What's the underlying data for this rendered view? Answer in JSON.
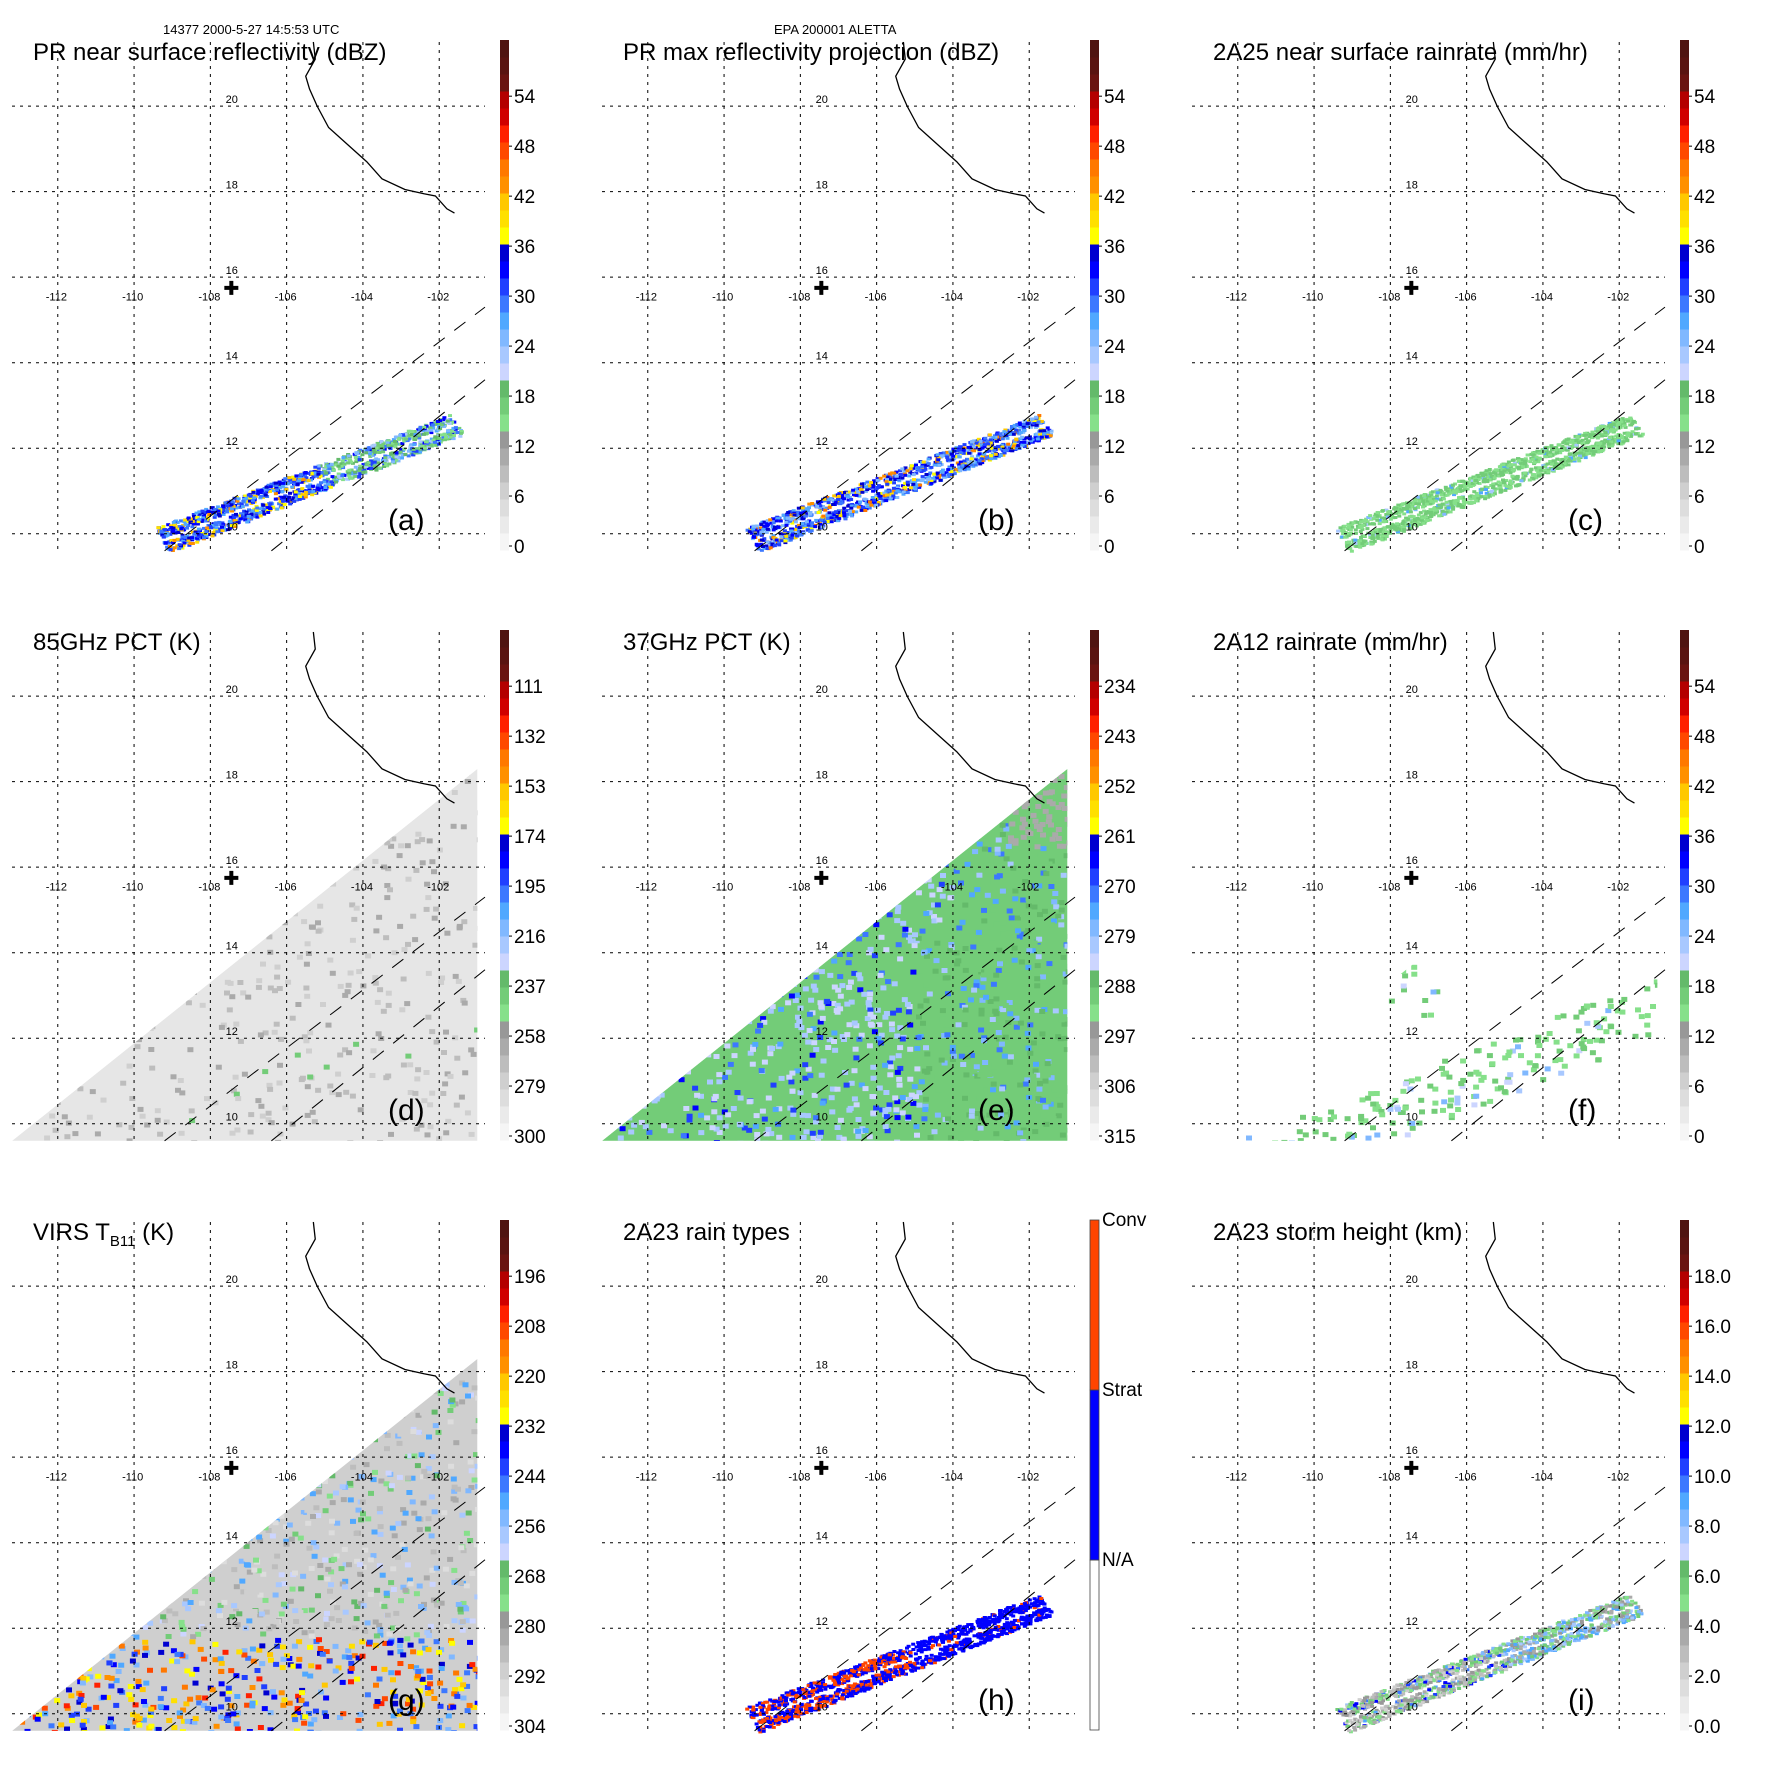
{
  "header": {
    "left": "14377 2000-5-27 14:5:53 UTC",
    "center": "EPA 200001 ALETTA"
  },
  "chart_data": [
    {
      "id": "a",
      "type": "heatmap",
      "title": "PR near surface reflectivity (dBZ)",
      "panel_label": "(a)",
      "colorbar": {
        "type": "continuous",
        "ticks": [
          "0",
          "6",
          "12",
          "18",
          "24",
          "30",
          "36",
          "42",
          "48",
          "54"
        ],
        "range": [
          0,
          60
        ]
      },
      "swath": "pr",
      "field": "pr_refl",
      "contours": false,
      "lon_ticks": [
        "-112",
        "-110",
        "-108",
        "-106",
        "-104",
        "-102"
      ],
      "lat_ticks": [
        "10",
        "12",
        "14",
        "16",
        "18",
        "20"
      ],
      "xlim": [
        -113.2,
        -100.8
      ],
      "ylim": [
        9.9,
        21.5
      ]
    },
    {
      "id": "b",
      "type": "heatmap",
      "title": "PR max reflectivity projection (dBZ)",
      "panel_label": "(b)",
      "colorbar": {
        "type": "continuous",
        "ticks": [
          "0",
          "6",
          "12",
          "18",
          "24",
          "30",
          "36",
          "42",
          "48",
          "54"
        ],
        "range": [
          0,
          60
        ]
      },
      "swath": "pr",
      "field": "pr_max",
      "contours": true,
      "lon_ticks": [
        "-112",
        "-110",
        "-108",
        "-106",
        "-104",
        "-102"
      ],
      "lat_ticks": [
        "10",
        "12",
        "14",
        "16",
        "18",
        "20"
      ],
      "xlim": [
        -113.2,
        -100.8
      ],
      "ylim": [
        9.9,
        21.5
      ]
    },
    {
      "id": "c",
      "type": "heatmap",
      "title": "2A25 near surface rainrate (mm/hr)",
      "panel_label": "(c)",
      "colorbar": {
        "type": "continuous",
        "ticks": [
          "0",
          "6",
          "12",
          "18",
          "24",
          "30",
          "36",
          "42",
          "48",
          "54"
        ],
        "range": [
          0,
          60
        ]
      },
      "swath": "pr",
      "field": "pr_rain",
      "contours": true,
      "lon_ticks": [
        "-112",
        "-110",
        "-108",
        "-106",
        "-104",
        "-102"
      ],
      "lat_ticks": [
        "10",
        "12",
        "14",
        "16",
        "18",
        "20"
      ],
      "xlim": [
        -113.2,
        -100.8
      ],
      "ylim": [
        9.9,
        21.5
      ]
    },
    {
      "id": "d",
      "type": "heatmap",
      "title": "85GHz PCT (K)",
      "panel_label": "(d)",
      "colorbar": {
        "type": "continuous",
        "ticks": [
          "300",
          "279",
          "258",
          "237",
          "216",
          "195",
          "174",
          "153",
          "132",
          "111"
        ],
        "range": [
          300,
          90
        ]
      },
      "swath": "tmi",
      "field": "pct85",
      "contours": true,
      "lon_ticks": [
        "-112",
        "-110",
        "-108",
        "-106",
        "-104",
        "-102"
      ],
      "lat_ticks": [
        "10",
        "12",
        "14",
        "16",
        "18",
        "20"
      ],
      "xlim": [
        -113.2,
        -100.8
      ],
      "ylim": [
        9.9,
        21.5
      ]
    },
    {
      "id": "e",
      "type": "heatmap",
      "title": "37GHz PCT (K)",
      "panel_label": "(e)",
      "colorbar": {
        "type": "continuous",
        "ticks": [
          "315",
          "306",
          "297",
          "288",
          "279",
          "270",
          "261",
          "252",
          "243",
          "234"
        ],
        "range": [
          315,
          225
        ]
      },
      "swath": "tmi",
      "field": "pct37",
      "contours": false,
      "lon_ticks": [
        "-112",
        "-110",
        "-108",
        "-106",
        "-104",
        "-102"
      ],
      "lat_ticks": [
        "10",
        "12",
        "14",
        "16",
        "18",
        "20"
      ],
      "xlim": [
        -113.2,
        -100.8
      ],
      "ylim": [
        9.9,
        21.5
      ]
    },
    {
      "id": "f",
      "type": "heatmap",
      "title": "2A12 rainrate (mm/hr)",
      "panel_label": "(f)",
      "colorbar": {
        "type": "continuous",
        "ticks": [
          "0",
          "6",
          "12",
          "18",
          "24",
          "30",
          "36",
          "42",
          "48",
          "54"
        ],
        "range": [
          0,
          60
        ]
      },
      "swath": "tmi_rain",
      "field": "tmi_rain",
      "contours": true,
      "lon_ticks": [
        "-112",
        "-110",
        "-108",
        "-106",
        "-104",
        "-102"
      ],
      "lat_ticks": [
        "10",
        "12",
        "14",
        "16",
        "18",
        "20"
      ],
      "xlim": [
        -113.2,
        -100.8
      ],
      "ylim": [
        9.9,
        21.5
      ]
    },
    {
      "id": "g",
      "type": "heatmap",
      "title": "VIRS T",
      "title_sub": "B11",
      "title_suffix": " (K)",
      "panel_label": "(g)",
      "colorbar": {
        "type": "continuous",
        "ticks": [
          "304",
          "292",
          "280",
          "268",
          "256",
          "244",
          "232",
          "220",
          "208",
          "196"
        ],
        "range": [
          304,
          184
        ]
      },
      "swath": "virs",
      "field": "virs",
      "contours": true,
      "lon_ticks": [
        "-112",
        "-110",
        "-108",
        "-106",
        "-104",
        "-102"
      ],
      "lat_ticks": [
        "10",
        "12",
        "14",
        "16",
        "18",
        "20"
      ],
      "xlim": [
        -113.2,
        -100.8
      ],
      "ylim": [
        9.9,
        21.5
      ]
    },
    {
      "id": "h",
      "type": "heatmap",
      "title": "2A23 rain types",
      "panel_label": "(h)",
      "colorbar": {
        "type": "categorical",
        "ticks": [
          "N/A",
          "Strat",
          "Conv"
        ],
        "colors": [
          "#ffffff",
          "#0000ff",
          "#ff4500"
        ]
      },
      "swath": "pr",
      "field": "rtype",
      "contours": false,
      "lon_ticks": [
        "-112",
        "-110",
        "-108",
        "-106",
        "-104",
        "-102"
      ],
      "lat_ticks": [
        "10",
        "12",
        "14",
        "16",
        "18",
        "20"
      ],
      "xlim": [
        -113.2,
        -100.8
      ],
      "ylim": [
        9.9,
        21.5
      ]
    },
    {
      "id": "i",
      "type": "heatmap",
      "title": "2A23 storm height (km)",
      "panel_label": "(i)",
      "colorbar": {
        "type": "continuous",
        "ticks": [
          "0.0",
          "2.0",
          "4.0",
          "6.0",
          "8.0",
          "10.0",
          "12.0",
          "14.0",
          "16.0",
          "18.0"
        ],
        "range": [
          0,
          20
        ]
      },
      "swath": "pr",
      "field": "sh",
      "contours": false,
      "lon_ticks": [
        "-112",
        "-110",
        "-108",
        "-106",
        "-104",
        "-102"
      ],
      "lat_ticks": [
        "10",
        "12",
        "14",
        "16",
        "18",
        "20"
      ],
      "xlim": [
        -113.2,
        -100.8
      ],
      "ylim": [
        9.9,
        21.5
      ]
    }
  ],
  "palette": [
    "#f5f5f5",
    "#eaeaea",
    "#dddddd",
    "#cfcfcf",
    "#bdbdbd",
    "#aaaaaa",
    "#989898",
    "#86e08a",
    "#73cc78",
    "#64ba6a",
    "#ccd5ff",
    "#a8c8ff",
    "#80b8ff",
    "#50a8ff",
    "#3c78ff",
    "#2040ff",
    "#0000ff",
    "#0000d0",
    "#ffff00",
    "#ffe000",
    "#ffc800",
    "#ff9000",
    "#ff7800",
    "#ff4800",
    "#ff2000",
    "#d00000",
    "#b40000",
    "#6a1410",
    "#5a1410",
    "#501410"
  ],
  "storm_center": {
    "lon": -107.45,
    "lat": 15.75,
    "symbol": "+"
  }
}
